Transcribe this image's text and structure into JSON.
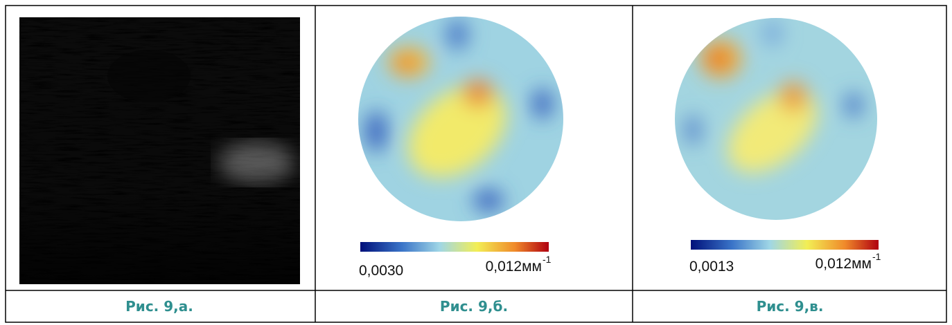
{
  "panels": [
    {
      "caption": "Рис. 9,а."
    },
    {
      "caption": "Рис. 9,б.",
      "colorbar": {
        "min_label": "0,0030",
        "max_label": "0,012мм",
        "exponent": "-1"
      }
    },
    {
      "caption": "Рис. 9,в.",
      "colorbar": {
        "min_label": "0,0013",
        "max_label": "0,012мм",
        "exponent": "-1"
      }
    }
  ]
}
